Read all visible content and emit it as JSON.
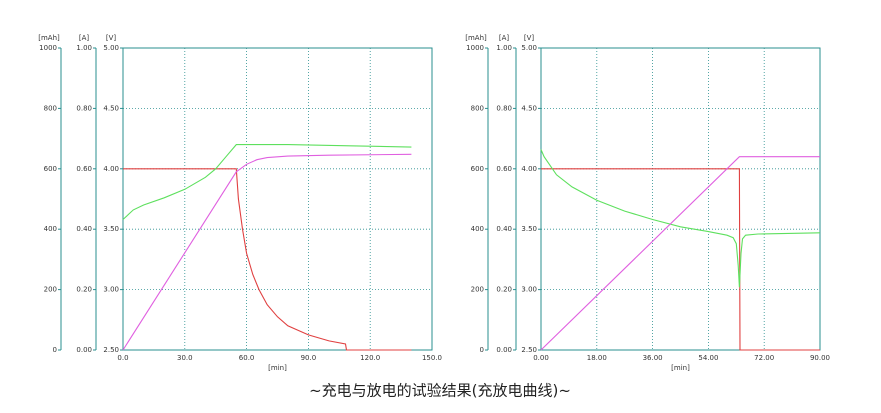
{
  "chart_data": [
    {
      "type": "line",
      "ylabel": "[mAh]",
      "y2label": "[A]",
      "y3label": "[V]",
      "xlabel": "[min]",
      "ylim": [
        0,
        1000
      ],
      "yticks": [
        0,
        200,
        400,
        600,
        800,
        1000
      ],
      "y2lim": [
        0,
        1
      ],
      "y2ticks": [
        {
          "value": 0,
          "label": "0.00"
        },
        {
          "value": 0.2,
          "label": "0.20"
        },
        {
          "value": 0.4,
          "label": "0.40"
        },
        {
          "value": 0.6,
          "label": "0.60"
        },
        {
          "value": 0.8,
          "label": "0.80"
        },
        {
          "value": 1,
          "label": "1.00"
        }
      ],
      "y3lim": [
        2.5,
        5
      ],
      "y3ticks": [
        {
          "value": 2.5,
          "label": "2.50"
        },
        {
          "value": 3,
          "label": "3.00"
        },
        {
          "value": 3.5,
          "label": "3.50"
        },
        {
          "value": 4,
          "label": "4.00"
        },
        {
          "value": 4.5,
          "label": "4.50"
        },
        {
          "value": 5,
          "label": "5.00"
        }
      ],
      "xlim": [
        0,
        150
      ],
      "xticks": [
        {
          "value": 0,
          "label": "0.0"
        },
        {
          "value": 30,
          "label": "30.0"
        },
        {
          "value": 60,
          "label": "60.0"
        },
        {
          "value": 90,
          "label": "90.0"
        },
        {
          "value": 120,
          "label": "120.0"
        },
        {
          "value": 150,
          "label": "150.0"
        }
      ],
      "grid": true,
      "series": [
        {
          "color": "#e04040",
          "axis": "y2",
          "x": [
            0,
            55,
            56,
            58,
            60,
            63,
            66,
            70,
            75,
            80,
            90,
            100,
            108,
            108.5,
            140
          ],
          "values": [
            0.6,
            0.6,
            0.5,
            0.4,
            0.32,
            0.25,
            0.2,
            0.15,
            0.11,
            0.08,
            0.05,
            0.03,
            0.02,
            0.0,
            0.0
          ]
        },
        {
          "color": "#5ee05e",
          "axis": "y3",
          "x": [
            0,
            5,
            10,
            20,
            30,
            40,
            45,
            50,
            55,
            80,
            110,
            140
          ],
          "values": [
            3.58,
            3.66,
            3.7,
            3.76,
            3.83,
            3.93,
            4.0,
            4.1,
            4.2,
            4.2,
            4.19,
            4.18
          ]
        },
        {
          "color": "#e060e0",
          "axis": "y",
          "x": [
            0,
            55,
            60,
            65,
            70,
            80,
            100,
            140
          ],
          "values": [
            0,
            590,
            615,
            630,
            637,
            642,
            645,
            648
          ]
        }
      ]
    },
    {
      "type": "line",
      "ylabel": "[mAh]",
      "y2label": "[A]",
      "y3label": "[V]",
      "xlabel": "[min]",
      "ylim": [
        0,
        1000
      ],
      "yticks": [
        0,
        200,
        400,
        600,
        800,
        1000
      ],
      "y2lim": [
        0,
        1
      ],
      "y2ticks": [
        {
          "value": 0,
          "label": "0.00"
        },
        {
          "value": 0.2,
          "label": "0.20"
        },
        {
          "value": 0.4,
          "label": "0.40"
        },
        {
          "value": 0.6,
          "label": "0.60"
        },
        {
          "value": 0.8,
          "label": "0.80"
        },
        {
          "value": 1,
          "label": "1.00"
        }
      ],
      "y3lim": [
        2.5,
        5
      ],
      "y3ticks": [
        {
          "value": 2.5,
          "label": "2.50"
        },
        {
          "value": 3,
          "label": "3.00"
        },
        {
          "value": 3.5,
          "label": "3.50"
        },
        {
          "value": 4,
          "label": "4.00"
        },
        {
          "value": 4.5,
          "label": "4.50"
        },
        {
          "value": 5,
          "label": "5.00"
        }
      ],
      "xlim": [
        0,
        90
      ],
      "xticks": [
        {
          "value": 0,
          "label": "0.00"
        },
        {
          "value": 18,
          "label": "18.00"
        },
        {
          "value": 36,
          "label": "36.00"
        },
        {
          "value": 54,
          "label": "54.00"
        },
        {
          "value": 72,
          "label": "72.00"
        },
        {
          "value": 90,
          "label": "90.00"
        }
      ],
      "grid": true,
      "series": [
        {
          "color": "#e04040",
          "axis": "y2",
          "x": [
            0,
            64,
            64.2,
            90
          ],
          "values": [
            0.6,
            0.6,
            0,
            0
          ]
        },
        {
          "color": "#5ee05e",
          "axis": "y3",
          "x": [
            0,
            1,
            5,
            10,
            18,
            27,
            36,
            45,
            54,
            60,
            62,
            63,
            63.6,
            64,
            64.5,
            65,
            66,
            70,
            90
          ],
          "values": [
            4.16,
            4.1,
            3.95,
            3.85,
            3.74,
            3.65,
            3.58,
            3.52,
            3.48,
            3.45,
            3.43,
            3.38,
            3.2,
            3.02,
            3.3,
            3.42,
            3.45,
            3.46,
            3.47
          ]
        },
        {
          "color": "#e060e0",
          "axis": "y",
          "x": [
            0,
            64,
            90
          ],
          "values": [
            0,
            640,
            640
          ]
        }
      ]
    }
  ],
  "caption": "~充电与放电的试验结果(充放电曲线)~"
}
